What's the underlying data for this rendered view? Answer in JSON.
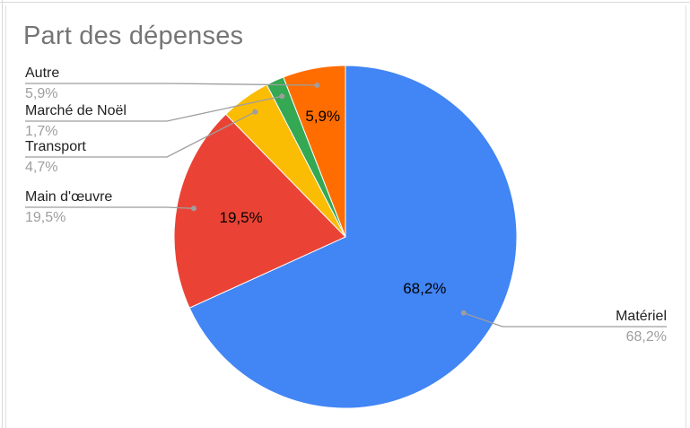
{
  "chart_data": {
    "type": "pie",
    "title": "Part des dépenses",
    "slices": [
      {
        "name": "Matériel",
        "value": 68.2,
        "label": "68,2%",
        "color": "#4285f4"
      },
      {
        "name": "Main d'œuvre",
        "value": 19.5,
        "label": "19,5%",
        "color": "#ea4335"
      },
      {
        "name": "Transport",
        "value": 4.7,
        "label": "4,7%",
        "color": "#fbbc04"
      },
      {
        "name": "Marché de Noël",
        "value": 1.7,
        "label": "1,7%",
        "color": "#34a853"
      },
      {
        "name": "Autre",
        "value": 5.9,
        "label": "5,9%",
        "color": "#ff6d01"
      }
    ],
    "legend": "none",
    "direction": "clockwise from top"
  }
}
